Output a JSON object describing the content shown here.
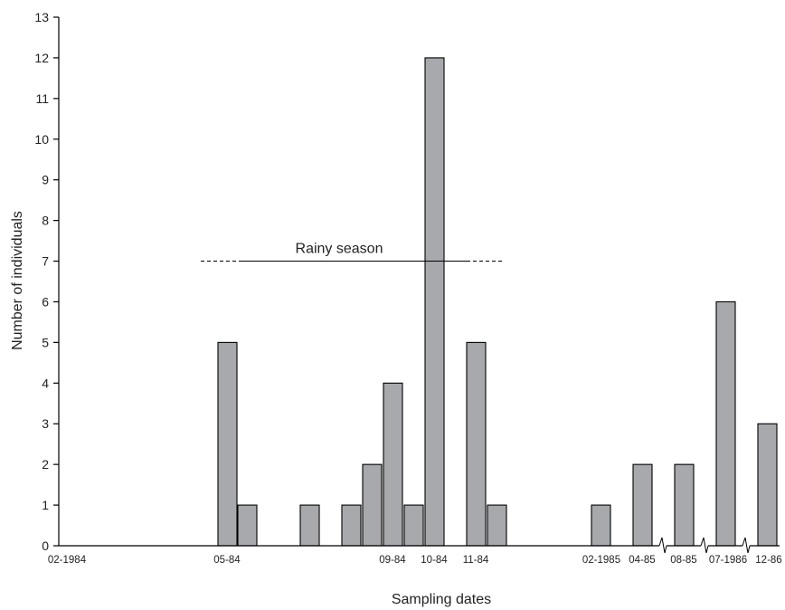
{
  "chart_data": {
    "type": "bar",
    "xlabel": "Sampling dates",
    "ylabel": "Number of individuals",
    "ylim": [
      0,
      13
    ],
    "yticks": [
      0,
      1,
      2,
      3,
      4,
      5,
      6,
      7,
      8,
      9,
      10,
      11,
      12,
      13
    ],
    "grid": false,
    "bar_color": "#a7a9ac",
    "tick_labels": [
      "02-1984",
      "05-84",
      "09-84",
      "10-84",
      "11-84",
      "02-1985",
      "04-85",
      "08-85",
      "07-1986",
      "12-86"
    ],
    "bars": [
      {
        "tick_label": "05-84",
        "value": 5
      },
      {
        "value": 1
      },
      {
        "value": 1
      },
      {
        "value": 1
      },
      {
        "value": 2
      },
      {
        "tick_label": "09-84",
        "value": 4
      },
      {
        "value": 1
      },
      {
        "tick_label": "10-84",
        "value": 12
      },
      {
        "tick_label": "11-84",
        "value": 5
      },
      {
        "value": 1
      },
      {
        "tick_label": "02-1985",
        "value": 1
      },
      {
        "tick_label": "04-85",
        "value": 2
      },
      {
        "tick_label": "08-85",
        "value": 2
      },
      {
        "tick_label": "07-1986",
        "value": 6
      },
      {
        "tick_label": "12-86",
        "value": 3
      }
    ],
    "annotations": [
      {
        "text": "Rainy season",
        "y": 7
      }
    ]
  }
}
